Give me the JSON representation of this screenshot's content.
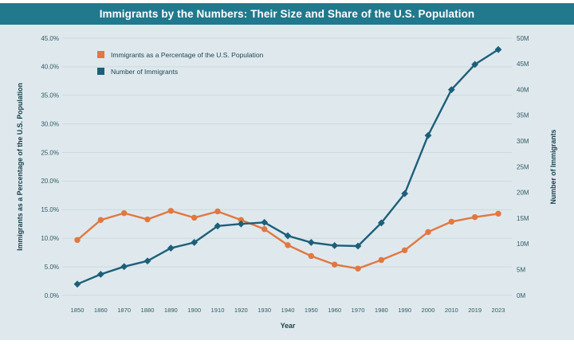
{
  "header": {
    "title": "Immigrants by the Numbers: Their Size and Share of the U.S. Population"
  },
  "colors": {
    "header_bg": "#20798d",
    "panel_bg": "#dfe9ed",
    "grid": "#cbd9de",
    "orange": "#e2773f",
    "blue": "#1d5f7a",
    "axis_title_text": "#173f4c",
    "tick_text": "#2f5a66",
    "legend_text": "#1c4653"
  },
  "chart_data": {
    "type": "line",
    "title": "Immigrants by the Numbers: Their Size and Share of the U.S. Population",
    "xlabel": "Year",
    "categories": [
      "1850",
      "1860",
      "1870",
      "1880",
      "1890",
      "1900",
      "1910",
      "1920",
      "1930",
      "1940",
      "1950",
      "1960",
      "1970",
      "1980",
      "1990",
      "2000",
      "2010",
      "2019",
      "2023"
    ],
    "series": [
      {
        "name": "Immigrants as a Percentage of the U.S. Population",
        "axis": "left",
        "marker": "circle",
        "color": "#e2773f",
        "values": [
          9.7,
          13.2,
          14.4,
          13.3,
          14.8,
          13.6,
          14.7,
          13.2,
          11.6,
          8.8,
          6.9,
          5.4,
          4.7,
          6.2,
          7.9,
          11.1,
          12.9,
          13.7,
          14.3
        ]
      },
      {
        "name": "Number of Immigrants",
        "axis": "right",
        "marker": "diamond",
        "color": "#1d5f7a",
        "values": [
          2.2,
          4.1,
          5.6,
          6.7,
          9.2,
          10.3,
          13.5,
          13.9,
          14.2,
          11.6,
          10.3,
          9.7,
          9.6,
          14.1,
          19.8,
          31.1,
          40.0,
          44.9,
          47.8
        ]
      }
    ],
    "left_axis": {
      "label": "Immigrants as a Percentage of the U.S. Population",
      "min": 0,
      "max": 45,
      "tick_step": 5,
      "tick_labels": [
        "0.0%",
        "5.0%",
        "10.0%",
        "15.0%",
        "20.0%",
        "25.0%",
        "30.0%",
        "35.0%",
        "40.0%",
        "45.0%"
      ]
    },
    "right_axis": {
      "label": "Number of Immigrants",
      "min": 0,
      "max": 50,
      "tick_step": 5,
      "tick_labels": [
        "0M",
        "5M",
        "10M",
        "15M",
        "20M",
        "25M",
        "30M",
        "35M",
        "40M",
        "45M",
        "50M"
      ]
    },
    "grid": true,
    "legend_position": "top-left"
  }
}
